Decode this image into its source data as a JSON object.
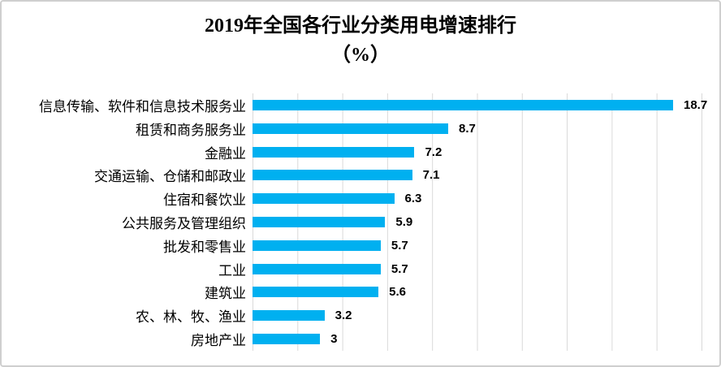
{
  "title": {
    "line1": "2019年全国各行业分类用电增速排行",
    "line2": "（%）"
  },
  "chart_data": {
    "type": "bar",
    "orientation": "horizontal",
    "title": "2019年全国各行业分类用电增速排行（%）",
    "categories": [
      "信息传输、软件和信息技术服务业",
      "租赁和商务服务业",
      "金融业",
      "交通运输、仓储和邮政业",
      "住宿和餐饮业",
      "公共服务及管理组织",
      "批发和零售业",
      "工业",
      "建筑业",
      "农、林、牧、渔业",
      "房地产业"
    ],
    "values": [
      18.7,
      8.7,
      7.2,
      7.1,
      6.3,
      5.9,
      5.7,
      5.7,
      5.6,
      3.2,
      3
    ],
    "value_labels": [
      "18.7",
      "8.7",
      "7.2",
      "7.1",
      "6.3",
      "5.9",
      "5.7",
      "5.7",
      "5.6",
      "3.2",
      "3"
    ],
    "xlabel": "",
    "ylabel": "",
    "xlim": [
      0,
      20
    ],
    "gridline_step": 2,
    "grid": true,
    "legend_position": "none",
    "data_labels": true,
    "bar_color": "#00B0F0",
    "gridline_color": "#D9D9D9",
    "text_color": "#000000"
  }
}
